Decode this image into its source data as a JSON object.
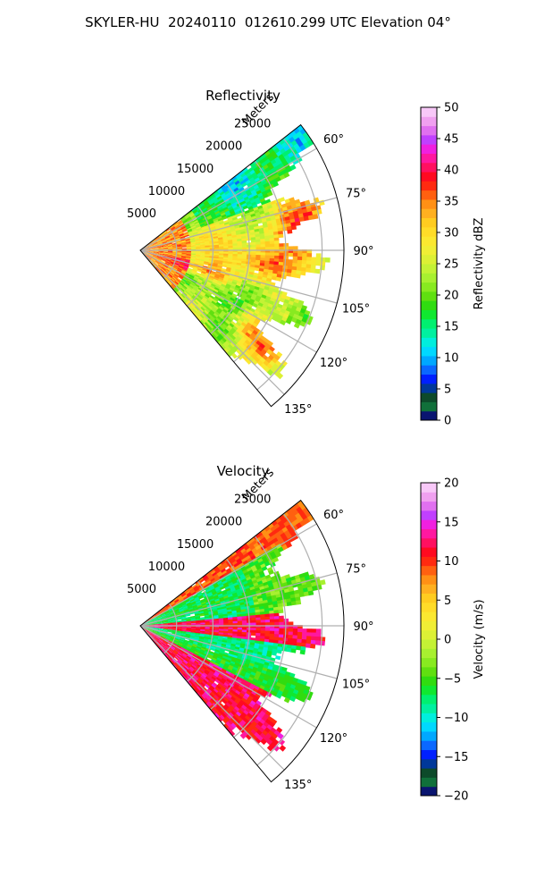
{
  "suptitle": "SKYLER-HU  20240110  012610.299 UTC Elevation 04°",
  "chart_data": [
    {
      "type": "heatmap",
      "subtype": "polar-sector-ppi",
      "title": "Reflectivity",
      "radial_label": "Meters",
      "r_ticks": [
        5000,
        10000,
        15000,
        20000,
        25000
      ],
      "r_range": [
        0,
        28000
      ],
      "theta_ticks": [
        "60°",
        "75°",
        "90°",
        "105°",
        "120°",
        "135°"
      ],
      "theta_range_deg": [
        52,
        140
      ],
      "grid": true,
      "colorbar": {
        "label": "Reflectivity dBZ",
        "min": 0,
        "max": 50,
        "ticks": [
          "0",
          "5",
          "10",
          "15",
          "20",
          "25",
          "30",
          "35",
          "40",
          "45",
          "50"
        ],
        "colors": [
          "#0a1570",
          "#10703a",
          "#0d4a2a",
          "#00389a",
          "#0020ff",
          "#0a68ff",
          "#00a8ff",
          "#00d8ff",
          "#00eedd",
          "#00f0a0",
          "#00f070",
          "#10e830",
          "#30dc10",
          "#60e010",
          "#88ea20",
          "#a8f030",
          "#c4f235",
          "#dcf035",
          "#f0ee35",
          "#fbe830",
          "#ffdc28",
          "#ffcc20",
          "#ffb020",
          "#ff9015",
          "#ff6010",
          "#ff2a10",
          "#ff0a20",
          "#ff1060",
          "#ff18a0",
          "#f020e0",
          "#c040ff",
          "#e070f0",
          "#f0a0f0",
          "#f8c8f8"
        ]
      },
      "cells": [
        [
          30,
          60,
          22
        ],
        [
          30,
          80,
          23
        ],
        [
          30,
          95,
          22
        ],
        [
          30,
          115,
          22
        ],
        [
          30,
          135,
          22
        ],
        [
          35,
          60,
          22
        ],
        [
          35,
          75,
          36
        ],
        [
          35,
          90,
          33
        ],
        [
          35,
          105,
          30
        ],
        [
          35,
          125,
          30
        ],
        [
          40,
          60,
          25
        ],
        [
          40,
          75,
          38
        ],
        [
          40,
          90,
          30
        ],
        [
          40,
          105,
          35
        ],
        [
          40,
          125,
          28
        ],
        [
          45,
          60,
          21
        ],
        [
          45,
          80,
          32
        ],
        [
          45,
          95,
          30
        ],
        [
          45,
          110,
          35
        ],
        [
          45,
          130,
          34
        ]
      ]
    },
    {
      "type": "heatmap",
      "subtype": "polar-sector-ppi",
      "title": "Velocity",
      "radial_label": "Meters",
      "r_ticks": [
        5000,
        10000,
        15000,
        20000,
        25000
      ],
      "r_range": [
        0,
        28000
      ],
      "theta_ticks": [
        "60°",
        "75°",
        "90°",
        "105°",
        "120°",
        "135°"
      ],
      "theta_range_deg": [
        52,
        140
      ],
      "grid": true,
      "colorbar": {
        "label": "Velocity (m/s)",
        "min": -20,
        "max": 20,
        "ticks": [
          "−20",
          "−15",
          "−10",
          "−5",
          "0",
          "5",
          "10",
          "15",
          "20"
        ],
        "colors": [
          "#0a1570",
          "#10703a",
          "#0d4a2a",
          "#00389a",
          "#0020ff",
          "#0a68ff",
          "#00a8ff",
          "#00d8ff",
          "#00eedd",
          "#00f0a0",
          "#00f070",
          "#10e830",
          "#30dc10",
          "#60e010",
          "#88ea20",
          "#a8f030",
          "#c4f235",
          "#dcf035",
          "#f0ee35",
          "#fbe830",
          "#ffdc28",
          "#ffcc20",
          "#ffb020",
          "#ff9015",
          "#ff6010",
          "#ff2a10",
          "#ff0a20",
          "#ff1060",
          "#ff18a0",
          "#f020e0",
          "#c040ff",
          "#e070f0",
          "#f0a0f0",
          "#f8c8f8"
        ]
      },
      "cells": [
        [
          30,
          60,
          1
        ],
        [
          30,
          80,
          -7
        ],
        [
          30,
          95,
          13
        ],
        [
          30,
          115,
          -8
        ],
        [
          30,
          135,
          14
        ],
        [
          35,
          60,
          10
        ],
        [
          35,
          75,
          -3
        ],
        [
          35,
          90,
          14
        ],
        [
          35,
          105,
          -9
        ],
        [
          35,
          125,
          15
        ],
        [
          40,
          60,
          9
        ],
        [
          40,
          75,
          -1
        ],
        [
          40,
          90,
          12
        ],
        [
          40,
          105,
          -6
        ],
        [
          40,
          125,
          10
        ],
        [
          45,
          60,
          7
        ],
        [
          45,
          80,
          -5
        ],
        [
          45,
          95,
          -5
        ],
        [
          45,
          110,
          -4
        ],
        [
          45,
          130,
          11
        ]
      ]
    }
  ]
}
